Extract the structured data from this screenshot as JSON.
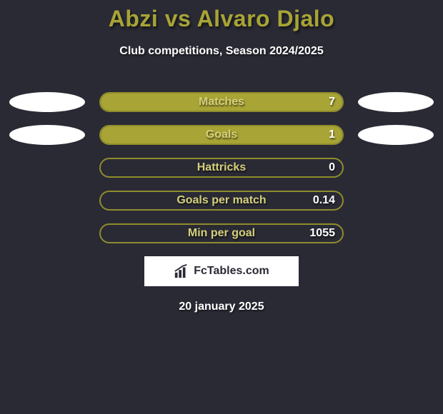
{
  "title": "Abzi vs Alvaro Djalo",
  "subtitle": "Club competitions, Season 2024/2025",
  "date": "20 january 2025",
  "brand": "FcTables.com",
  "colors": {
    "background": "#2a2a35",
    "accent": "#a8a435",
    "ellipse": "#ffffff",
    "bar_track": "#a8a435",
    "bar_fill": "#a8a435",
    "bar_border": "#8f8c2d",
    "label_text": "#d4d07a",
    "value_text": "#ffffff"
  },
  "stats": [
    {
      "label": "Matches",
      "value": "7",
      "fill_pct": 100,
      "show_left_ellipse": true,
      "show_right_ellipse": true
    },
    {
      "label": "Goals",
      "value": "1",
      "fill_pct": 100,
      "show_left_ellipse": true,
      "show_right_ellipse": true
    },
    {
      "label": "Hattricks",
      "value": "0",
      "fill_pct": 0,
      "show_left_ellipse": false,
      "show_right_ellipse": false
    },
    {
      "label": "Goals per match",
      "value": "0.14",
      "fill_pct": 0,
      "show_left_ellipse": false,
      "show_right_ellipse": false
    },
    {
      "label": "Min per goal",
      "value": "1055",
      "fill_pct": 0,
      "show_left_ellipse": false,
      "show_right_ellipse": false
    }
  ],
  "typography": {
    "title_fontsize": 32,
    "subtitle_fontsize": 16,
    "label_fontsize": 16,
    "value_fontsize": 16
  }
}
